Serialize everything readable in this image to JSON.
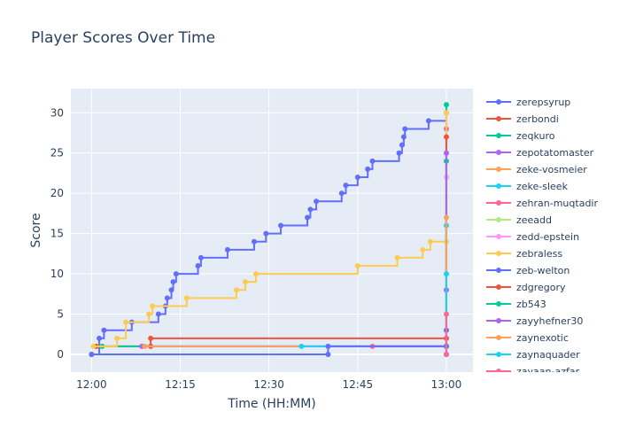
{
  "chart_data": {
    "type": "line",
    "line_shape": "step",
    "title": "Player Scores Over Time",
    "xlabel": "Time (HH:MM)",
    "ylabel": "Score",
    "x_ticks": [
      "12:00",
      "12:15",
      "12:30",
      "12:45",
      "13:00"
    ],
    "x_tick_values": [
      0,
      15,
      30,
      45,
      60
    ],
    "y_ticks": [
      0,
      5,
      10,
      15,
      20,
      25,
      30
    ],
    "xlim": [
      -3.5,
      64.5
    ],
    "ylim": [
      -2.2,
      33
    ],
    "grid": true,
    "legend_position": "right",
    "background": "#e5ecf6",
    "series": [
      {
        "name": "zerepsyrup",
        "color": "#636efa",
        "points": [
          [
            0,
            0
          ],
          [
            1.3,
            2
          ],
          [
            2.1,
            3
          ],
          [
            6.8,
            4
          ],
          [
            11.3,
            5
          ],
          [
            12.5,
            6
          ],
          [
            12.8,
            7
          ],
          [
            13.5,
            8
          ],
          [
            13.8,
            9
          ],
          [
            14.3,
            10
          ],
          [
            18,
            11
          ],
          [
            18.5,
            12
          ],
          [
            23,
            13
          ],
          [
            27.5,
            14
          ],
          [
            29.5,
            15
          ],
          [
            32,
            16
          ],
          [
            36.5,
            17
          ],
          [
            37,
            18
          ],
          [
            38,
            19
          ],
          [
            42.3,
            20
          ],
          [
            43,
            21
          ],
          [
            45,
            22
          ],
          [
            46.7,
            23
          ],
          [
            47.5,
            24
          ],
          [
            52,
            25
          ],
          [
            52.5,
            26
          ],
          [
            52.8,
            27
          ],
          [
            53,
            28
          ],
          [
            57,
            29
          ],
          [
            60,
            30
          ],
          [
            60,
            1
          ]
        ]
      },
      {
        "name": "zerbondi",
        "color": "#ef553b",
        "points": [
          [
            0.8,
            1
          ],
          [
            10,
            1
          ],
          [
            10,
            2
          ],
          [
            60,
            2
          ]
        ]
      },
      {
        "name": "zeqkuro",
        "color": "#00cc96",
        "points": [
          [
            1.8,
            1
          ],
          [
            60,
            1
          ],
          [
            60,
            31
          ]
        ]
      },
      {
        "name": "zepotatomaster",
        "color": "#ab63fa",
        "points": [
          [
            8.5,
            1
          ],
          [
            60,
            1
          ],
          [
            60,
            8
          ]
        ]
      },
      {
        "name": "zeke-vosmeier",
        "color": "#ffa15a",
        "points": [
          [
            9,
            1
          ],
          [
            60,
            1
          ],
          [
            60,
            30
          ]
        ]
      },
      {
        "name": "zeke-sleek",
        "color": "#19d3f3",
        "points": [
          [
            35.5,
            1
          ],
          [
            60,
            1
          ],
          [
            60,
            16
          ]
        ]
      },
      {
        "name": "zehran-muqtadir",
        "color": "#ff6692",
        "points": [
          [
            47.5,
            1
          ],
          [
            60,
            1
          ],
          [
            60,
            28
          ]
        ]
      },
      {
        "name": "zeeadd",
        "color": "#b6e880",
        "points": [
          [
            60,
            0
          ],
          [
            60,
            14
          ]
        ]
      },
      {
        "name": "zedd-epstein",
        "color": "#ff97ff",
        "points": [
          [
            60,
            0
          ],
          [
            60,
            22
          ]
        ]
      },
      {
        "name": "zebraless",
        "color": "#fecb52",
        "points": [
          [
            0.3,
            1
          ],
          [
            4.3,
            2
          ],
          [
            5.8,
            4
          ],
          [
            9.7,
            5
          ],
          [
            10.3,
            6
          ],
          [
            16.1,
            7
          ],
          [
            24.5,
            8
          ],
          [
            26,
            9
          ],
          [
            27.8,
            10
          ],
          [
            45,
            11
          ],
          [
            51.7,
            12
          ],
          [
            56,
            13
          ],
          [
            57.3,
            14
          ],
          [
            60,
            30
          ]
        ]
      },
      {
        "name": "zeb-welton",
        "color": "#636efa",
        "points": [
          [
            0,
            0
          ],
          [
            40,
            0
          ],
          [
            40,
            1
          ],
          [
            60,
            1
          ],
          [
            60,
            3
          ]
        ]
      },
      {
        "name": "zdgregory",
        "color": "#ef553b",
        "points": [
          [
            60,
            0
          ],
          [
            60,
            27
          ]
        ]
      },
      {
        "name": "zb543",
        "color": "#00cc96",
        "points": [
          [
            60,
            0
          ],
          [
            60,
            24
          ]
        ]
      },
      {
        "name": "zayyhefner30",
        "color": "#ab63fa",
        "points": [
          [
            60,
            0
          ],
          [
            60,
            25
          ]
        ]
      },
      {
        "name": "zaynexotic",
        "color": "#ffa15a",
        "points": [
          [
            60,
            0
          ],
          [
            60,
            17
          ]
        ]
      },
      {
        "name": "zaynaquader",
        "color": "#19d3f3",
        "points": [
          [
            60,
            0
          ],
          [
            60,
            10
          ]
        ]
      },
      {
        "name": "zayaan-azfar",
        "color": "#ff6692",
        "points": [
          [
            60,
            0
          ],
          [
            60,
            5
          ]
        ]
      }
    ]
  }
}
